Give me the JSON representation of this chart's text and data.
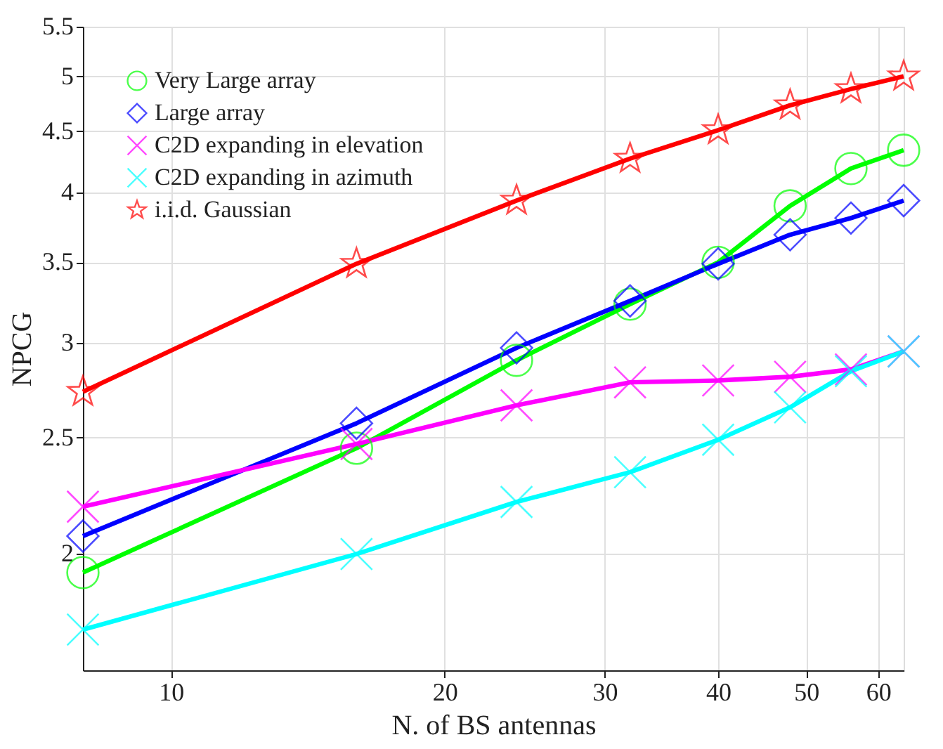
{
  "chart_data": {
    "type": "line",
    "xlabel": "N. of BS antennas",
    "ylabel": "NPCG",
    "x": [
      8,
      16,
      24,
      32,
      40,
      48,
      56,
      64
    ],
    "series": [
      {
        "name": "Very Large array",
        "color": "#00ff00",
        "marker": "circle",
        "values": [
          1.93,
          2.45,
          2.9,
          3.23,
          3.5,
          3.9,
          4.19,
          4.34
        ]
      },
      {
        "name": "Large array",
        "color": "#0000ff",
        "marker": "diamond",
        "values": [
          2.07,
          2.57,
          2.97,
          3.25,
          3.49,
          3.69,
          3.81,
          3.94
        ]
      },
      {
        "name": "C2D expanding in elevation",
        "color": "#ff00ff",
        "marker": "cross",
        "values": [
          2.19,
          2.47,
          2.66,
          2.78,
          2.79,
          2.81,
          2.85,
          2.95
        ]
      },
      {
        "name": "C2D expanding in azimuth",
        "color": "#00ffff",
        "marker": "cross",
        "values": [
          1.73,
          2.0,
          2.21,
          2.34,
          2.49,
          2.65,
          2.84,
          2.95
        ]
      },
      {
        "name": "i.i.d. Gaussian",
        "color": "#ff0000",
        "marker": "star",
        "values": [
          2.73,
          3.49,
          3.94,
          4.27,
          4.51,
          4.73,
          4.88,
          5.0
        ]
      }
    ],
    "log": "xy",
    "xlim": [
      8,
      64
    ],
    "ylim": [
      1.6,
      5.5
    ],
    "xticks": [
      10,
      20,
      30,
      40,
      50,
      60
    ],
    "yticks": [
      2,
      2.5,
      3,
      3.5,
      4,
      4.5,
      5,
      5.5
    ],
    "grid": true,
    "legend": "top left",
    "line_style": "solid"
  }
}
